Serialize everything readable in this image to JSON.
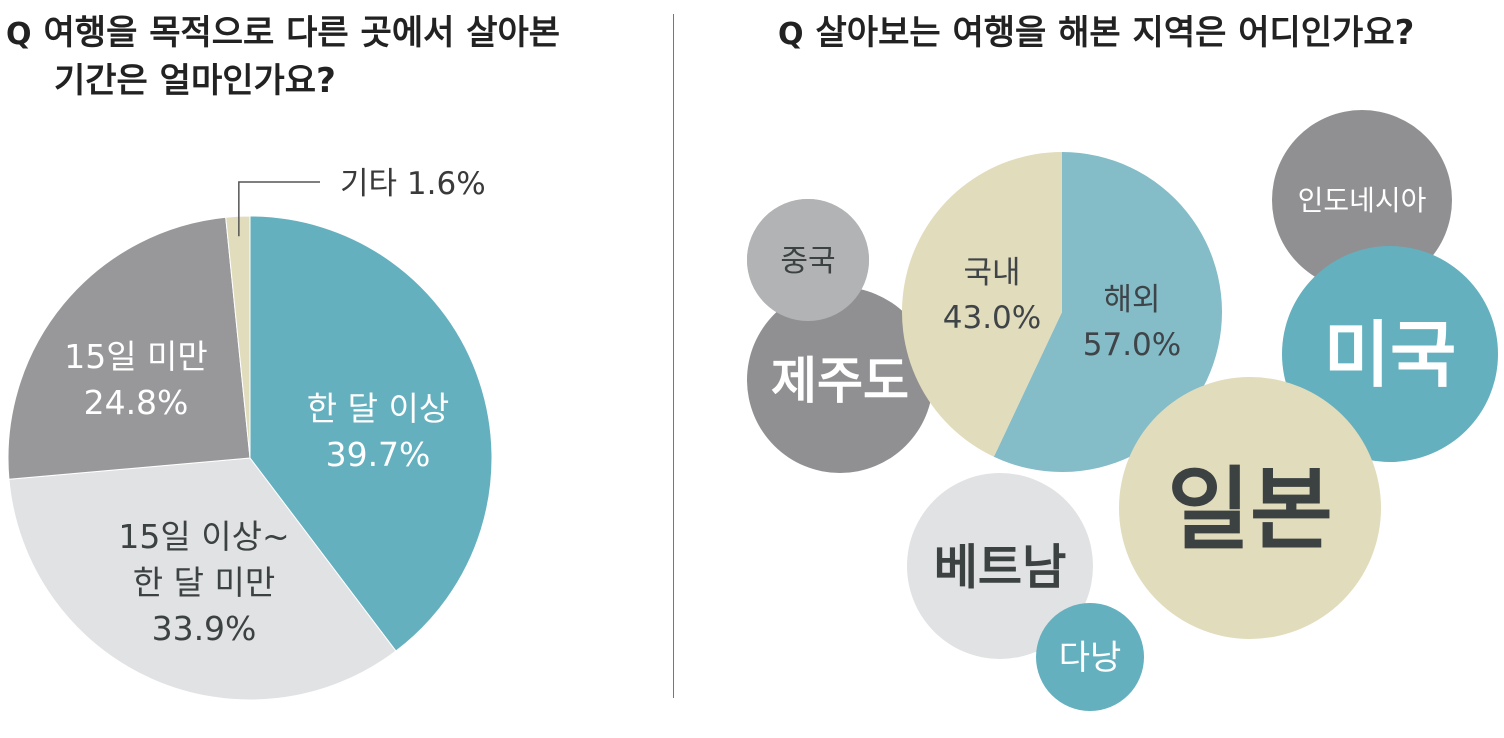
{
  "left_panel": {
    "question_mark": "Q",
    "question_line1": "여행을 목적으로 다른 곳에서 살아본",
    "question_line2": "기간은 얼마인가요?"
  },
  "right_panel": {
    "question_mark": "Q",
    "question": "살아보는 여행을 해본 지역은 어디인가요?"
  },
  "colors": {
    "teal": "#64b0bf",
    "light_teal": "#84bcc8",
    "light_gray": "#e1e2e3",
    "mid_gray": "#98989b",
    "dark_gray": "#909092",
    "silver": "#b2b3b5",
    "beige": "#e1dcbc",
    "dark_text": "#3c4142",
    "white_text": "#ffffff"
  },
  "chart_data": [
    {
      "type": "pie",
      "title": "여행을 목적으로 다른 곳에서 살아본 기간은 얼마인가요?",
      "slices": [
        {
          "label_lines": [
            "한 달 이상"
          ],
          "pct_text": "39.7%",
          "value": 39.7
        },
        {
          "label_lines": [
            "15일 이상~",
            "한 달 미만"
          ],
          "pct_text": "33.9%",
          "value": 33.9
        },
        {
          "label_lines": [
            "15일 미만"
          ],
          "pct_text": "24.8%",
          "value": 24.8
        },
        {
          "label_lines": [
            "기타"
          ],
          "pct_text": "1.6%",
          "value": 1.6
        }
      ]
    },
    {
      "type": "pie",
      "title": "살아보는 여행을 해본 지역은 어디인가요?",
      "slices": [
        {
          "label_lines": [
            "해외"
          ],
          "pct_text": "57.0%",
          "value": 57.0
        },
        {
          "label_lines": [
            "국내"
          ],
          "pct_text": "43.0%",
          "value": 43.0
        }
      ],
      "bubbles": [
        "인도네시아",
        "중국",
        "제주도",
        "미국",
        "일본",
        "베트남",
        "다낭"
      ]
    }
  ]
}
